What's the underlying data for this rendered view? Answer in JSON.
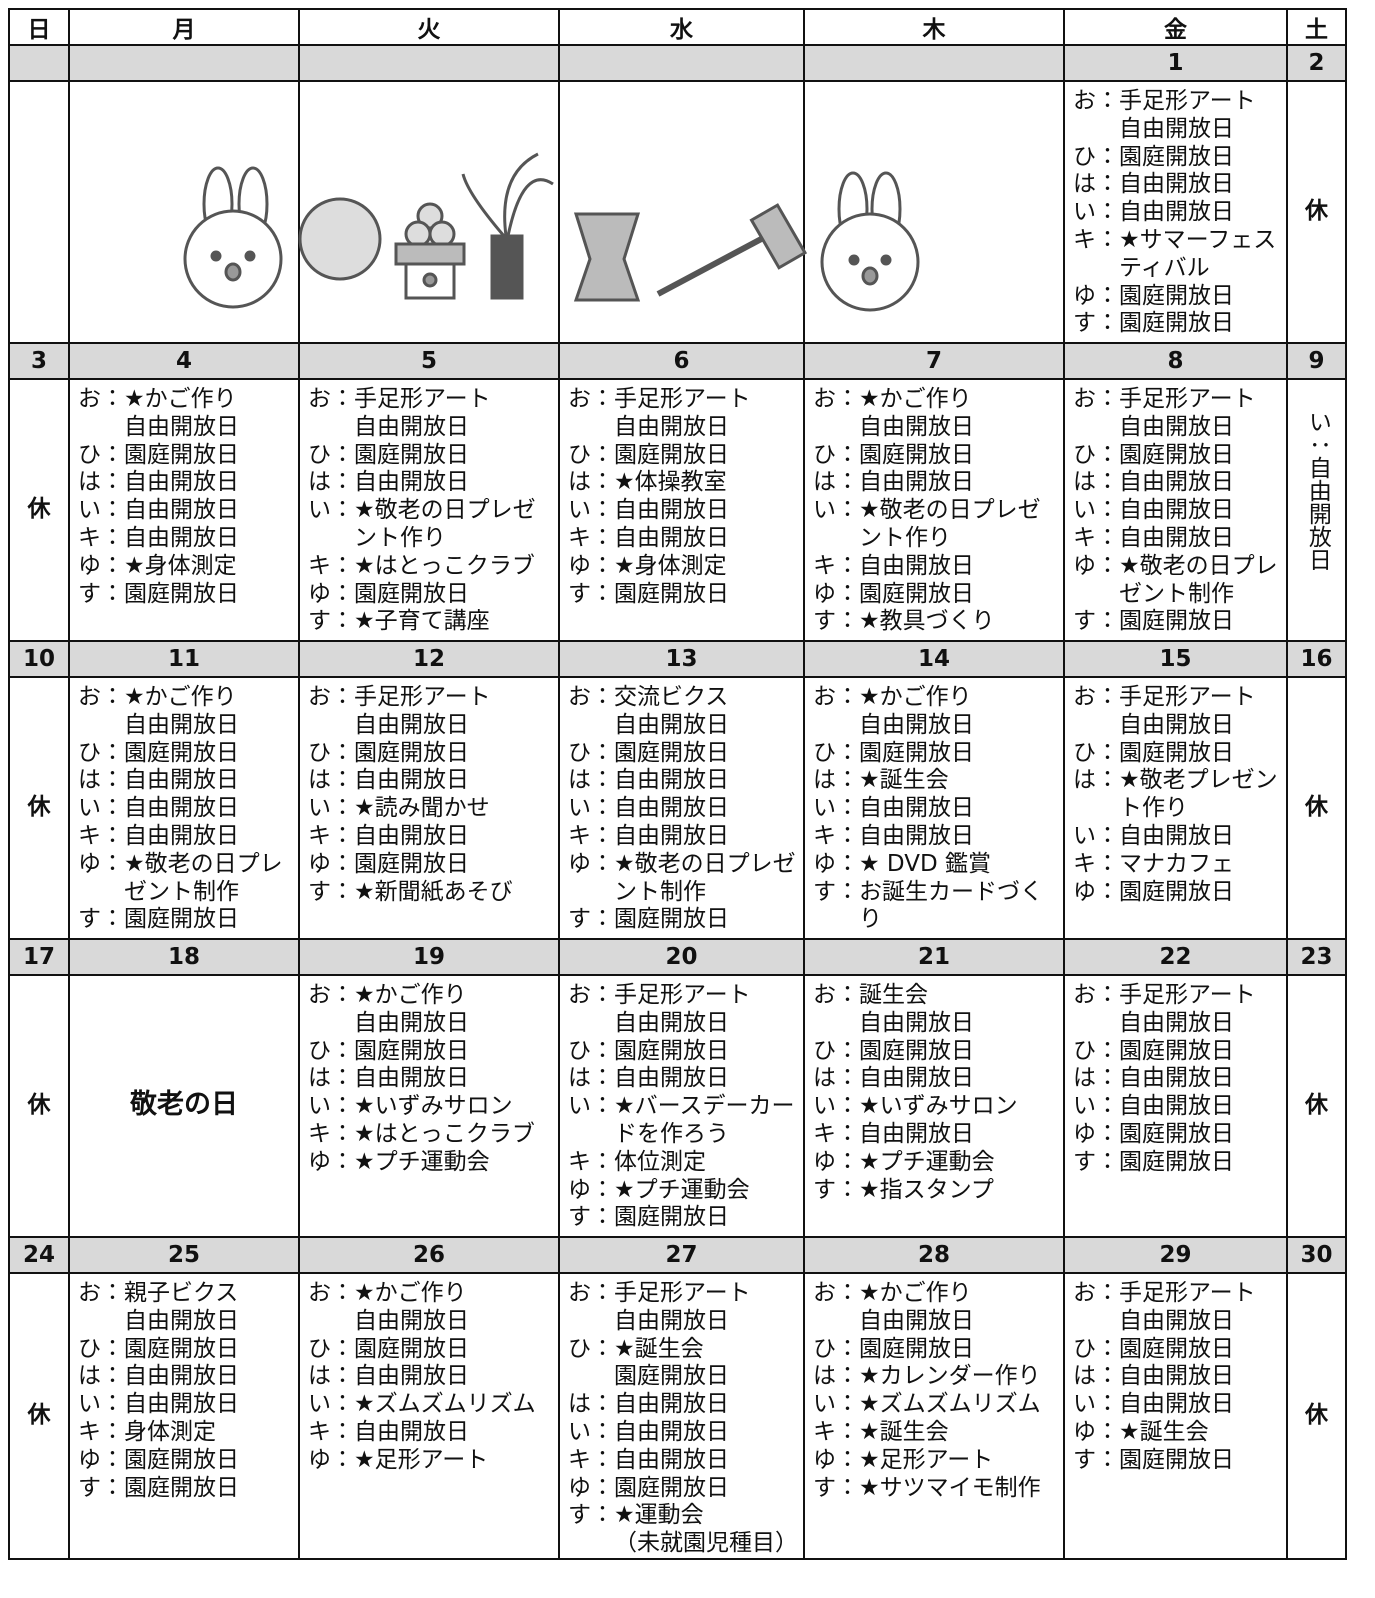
{
  "header": {
    "days": [
      "日",
      "月",
      "火",
      "水",
      "木",
      "金",
      "土"
    ]
  },
  "weeks": [
    {
      "days": [
        {},
        {},
        {},
        {},
        {},
        {
          "date": 1,
          "entries": [
            {
              "k": "お：",
              "t": [
                "手足形アート",
                "自由開放日"
              ]
            },
            {
              "k": "ひ：",
              "t": [
                "園庭開放日"
              ]
            },
            {
              "k": "は：",
              "t": [
                "自由開放日"
              ]
            },
            {
              "k": "い：",
              "t": [
                "自由開放日"
              ]
            },
            {
              "k": "キ：",
              "t": [
                "★サマーフェスティバル"
              ]
            },
            {
              "k": "ゆ：",
              "t": [
                "園庭開放日"
              ]
            },
            {
              "k": "す：",
              "t": [
                "園庭開放日"
              ]
            }
          ]
        },
        {
          "date": 2,
          "note": "休"
        }
      ]
    },
    {
      "days": [
        {
          "date": 3,
          "note": "休"
        },
        {
          "date": 4,
          "entries": [
            {
              "k": "お：",
              "t": [
                "★かご作り",
                "自由開放日"
              ]
            },
            {
              "k": "ひ：",
              "t": [
                "園庭開放日"
              ]
            },
            {
              "k": "は：",
              "t": [
                "自由開放日"
              ]
            },
            {
              "k": "い：",
              "t": [
                "自由開放日"
              ]
            },
            {
              "k": "キ：",
              "t": [
                "自由開放日"
              ]
            },
            {
              "k": "ゆ：",
              "t": [
                "★身体測定"
              ]
            },
            {
              "k": "す：",
              "t": [
                "園庭開放日"
              ]
            }
          ]
        },
        {
          "date": 5,
          "entries": [
            {
              "k": "お：",
              "t": [
                "手足形アート",
                "自由開放日"
              ]
            },
            {
              "k": "ひ：",
              "t": [
                "園庭開放日"
              ]
            },
            {
              "k": "は：",
              "t": [
                "自由開放日"
              ]
            },
            {
              "k": "い：",
              "t": [
                "★敬老の日プレゼント作り"
              ]
            },
            {
              "k": "キ：",
              "t": [
                "★はとっこクラブ"
              ]
            },
            {
              "k": "ゆ：",
              "t": [
                "園庭開放日"
              ]
            },
            {
              "k": "す：",
              "t": [
                "★子育て講座"
              ]
            }
          ]
        },
        {
          "date": 6,
          "entries": [
            {
              "k": "お：",
              "t": [
                "手足形アート",
                "自由開放日"
              ]
            },
            {
              "k": "ひ：",
              "t": [
                "園庭開放日"
              ]
            },
            {
              "k": "は：",
              "t": [
                "★体操教室"
              ]
            },
            {
              "k": "い：",
              "t": [
                "自由開放日"
              ]
            },
            {
              "k": "キ：",
              "t": [
                "自由開放日"
              ]
            },
            {
              "k": "ゆ：",
              "t": [
                "★身体測定"
              ]
            },
            {
              "k": "す：",
              "t": [
                "園庭開放日"
              ]
            }
          ]
        },
        {
          "date": 7,
          "entries": [
            {
              "k": "お：",
              "t": [
                "★かご作り",
                "自由開放日"
              ]
            },
            {
              "k": "ひ：",
              "t": [
                "園庭開放日"
              ]
            },
            {
              "k": "は：",
              "t": [
                "自由開放日"
              ]
            },
            {
              "k": "い：",
              "t": [
                "★敬老の日プレゼント作り"
              ]
            },
            {
              "k": "キ：",
              "t": [
                "自由開放日"
              ]
            },
            {
              "k": "ゆ：",
              "t": [
                "園庭開放日"
              ]
            },
            {
              "k": "す：",
              "t": [
                "★教具づくり"
              ]
            }
          ]
        },
        {
          "date": 8,
          "entries": [
            {
              "k": "お：",
              "t": [
                "手足形アート",
                "自由開放日"
              ]
            },
            {
              "k": "ひ：",
              "t": [
                "園庭開放日"
              ]
            },
            {
              "k": "は：",
              "t": [
                "自由開放日"
              ]
            },
            {
              "k": "い：",
              "t": [
                "自由開放日"
              ]
            },
            {
              "k": "キ：",
              "t": [
                "自由開放日"
              ]
            },
            {
              "k": "ゆ：",
              "t": [
                "★敬老の日プレゼント制作"
              ]
            },
            {
              "k": "す：",
              "t": [
                "園庭開放日"
              ]
            }
          ]
        },
        {
          "date": 9,
          "vertical": true,
          "entries": [
            {
              "k": "い：",
              "t": [
                "自由開放日"
              ]
            }
          ]
        }
      ]
    },
    {
      "days": [
        {
          "date": 10,
          "note": "休"
        },
        {
          "date": 11,
          "entries": [
            {
              "k": "お：",
              "t": [
                "★かご作り",
                "自由開放日"
              ]
            },
            {
              "k": "ひ：",
              "t": [
                "園庭開放日"
              ]
            },
            {
              "k": "は：",
              "t": [
                "自由開放日"
              ]
            },
            {
              "k": "い：",
              "t": [
                "自由開放日"
              ]
            },
            {
              "k": "キ：",
              "t": [
                "自由開放日"
              ]
            },
            {
              "k": "ゆ：",
              "t": [
                "★敬老の日プレゼント制作"
              ]
            },
            {
              "k": "す：",
              "t": [
                "園庭開放日"
              ]
            }
          ]
        },
        {
          "date": 12,
          "entries": [
            {
              "k": "お：",
              "t": [
                "手足形アート",
                "自由開放日"
              ]
            },
            {
              "k": "ひ：",
              "t": [
                "園庭開放日"
              ]
            },
            {
              "k": "は：",
              "t": [
                "自由開放日"
              ]
            },
            {
              "k": "い：",
              "t": [
                "★読み聞かせ"
              ]
            },
            {
              "k": "キ：",
              "t": [
                "自由開放日"
              ]
            },
            {
              "k": "ゆ：",
              "t": [
                "園庭開放日"
              ]
            },
            {
              "k": "す：",
              "t": [
                "★新聞紙あそび"
              ]
            }
          ]
        },
        {
          "date": 13,
          "entries": [
            {
              "k": "お：",
              "t": [
                "交流ビクス",
                "自由開放日"
              ]
            },
            {
              "k": "ひ：",
              "t": [
                "園庭開放日"
              ]
            },
            {
              "k": "は：",
              "t": [
                "自由開放日"
              ]
            },
            {
              "k": "い：",
              "t": [
                "自由開放日"
              ]
            },
            {
              "k": "キ：",
              "t": [
                "自由開放日"
              ]
            },
            {
              "k": "ゆ：",
              "t": [
                "★敬老の日プレゼント制作"
              ]
            },
            {
              "k": "す：",
              "t": [
                "園庭開放日"
              ]
            }
          ]
        },
        {
          "date": 14,
          "entries": [
            {
              "k": "お：",
              "t": [
                "★かご作り",
                "自由開放日"
              ]
            },
            {
              "k": "ひ：",
              "t": [
                "園庭開放日"
              ]
            },
            {
              "k": "は：",
              "t": [
                "★誕生会"
              ]
            },
            {
              "k": "い：",
              "t": [
                "自由開放日"
              ]
            },
            {
              "k": "キ：",
              "t": [
                "自由開放日"
              ]
            },
            {
              "k": "ゆ：",
              "t": [
                "★ DVD 鑑賞"
              ]
            },
            {
              "k": "す：",
              "t": [
                "お誕生カードづくり"
              ]
            }
          ]
        },
        {
          "date": 15,
          "entries": [
            {
              "k": "お：",
              "t": [
                "手足形アート",
                "自由開放日"
              ]
            },
            {
              "k": "ひ：",
              "t": [
                "園庭開放日"
              ]
            },
            {
              "k": "は：",
              "t": [
                "★敬老プレゼント作り"
              ]
            },
            {
              "k": "い：",
              "t": [
                "自由開放日"
              ]
            },
            {
              "k": "キ：",
              "t": [
                "マナカフェ"
              ]
            },
            {
              "k": "ゆ：",
              "t": [
                "園庭開放日"
              ]
            }
          ]
        },
        {
          "date": 16,
          "note": "休"
        }
      ]
    },
    {
      "days": [
        {
          "date": 17,
          "note": "休"
        },
        {
          "date": 18,
          "holiday": "敬老の日"
        },
        {
          "date": 19,
          "entries": [
            {
              "k": "お：",
              "t": [
                "★かご作り",
                "自由開放日"
              ]
            },
            {
              "k": "ひ：",
              "t": [
                "園庭開放日"
              ]
            },
            {
              "k": "は：",
              "t": [
                "自由開放日"
              ]
            },
            {
              "k": "い：",
              "t": [
                "★いずみサロン"
              ]
            },
            {
              "k": "キ：",
              "t": [
                "★はとっこクラブ"
              ]
            },
            {
              "k": "ゆ：",
              "t": [
                "★プチ運動会"
              ]
            }
          ]
        },
        {
          "date": 20,
          "entries": [
            {
              "k": "お：",
              "t": [
                "手足形アート",
                "自由開放日"
              ]
            },
            {
              "k": "ひ：",
              "t": [
                "園庭開放日"
              ]
            },
            {
              "k": "は：",
              "t": [
                "自由開放日"
              ]
            },
            {
              "k": "い：",
              "t": [
                "★バースデーカードを作ろう"
              ]
            },
            {
              "k": "キ：",
              "t": [
                "体位測定"
              ]
            },
            {
              "k": "ゆ：",
              "t": [
                "★プチ運動会"
              ]
            },
            {
              "k": "す：",
              "t": [
                "園庭開放日"
              ]
            }
          ]
        },
        {
          "date": 21,
          "entries": [
            {
              "k": "お：",
              "t": [
                "誕生会",
                "自由開放日"
              ]
            },
            {
              "k": "ひ：",
              "t": [
                "園庭開放日"
              ]
            },
            {
              "k": "は：",
              "t": [
                "自由開放日"
              ]
            },
            {
              "k": "い：",
              "t": [
                "★いずみサロン"
              ]
            },
            {
              "k": "キ：",
              "t": [
                "自由開放日"
              ]
            },
            {
              "k": "ゆ：",
              "t": [
                "★プチ運動会"
              ]
            },
            {
              "k": "す：",
              "t": [
                "★指スタンプ"
              ]
            }
          ]
        },
        {
          "date": 22,
          "entries": [
            {
              "k": "お：",
              "t": [
                "手足形アート",
                "自由開放日"
              ]
            },
            {
              "k": "ひ：",
              "t": [
                "園庭開放日"
              ]
            },
            {
              "k": "は：",
              "t": [
                "自由開放日"
              ]
            },
            {
              "k": "い：",
              "t": [
                "自由開放日"
              ]
            },
            {
              "k": "ゆ：",
              "t": [
                "園庭開放日"
              ]
            },
            {
              "k": "す：",
              "t": [
                "園庭開放日"
              ]
            }
          ]
        },
        {
          "date": 23,
          "note": "休"
        }
      ]
    },
    {
      "days": [
        {
          "date": 24,
          "note": "休"
        },
        {
          "date": 25,
          "entries": [
            {
              "k": "お：",
              "t": [
                "親子ビクス",
                "自由開放日"
              ]
            },
            {
              "k": "ひ：",
              "t": [
                "園庭開放日"
              ]
            },
            {
              "k": "は：",
              "t": [
                "自由開放日"
              ]
            },
            {
              "k": "い：",
              "t": [
                "自由開放日"
              ]
            },
            {
              "k": "キ：",
              "t": [
                "身体測定"
              ]
            },
            {
              "k": "ゆ：",
              "t": [
                "園庭開放日"
              ]
            },
            {
              "k": "す：",
              "t": [
                "園庭開放日"
              ]
            }
          ]
        },
        {
          "date": 26,
          "entries": [
            {
              "k": "お：",
              "t": [
                "★かご作り",
                "自由開放日"
              ]
            },
            {
              "k": "ひ：",
              "t": [
                "園庭開放日"
              ]
            },
            {
              "k": "は：",
              "t": [
                "自由開放日"
              ]
            },
            {
              "k": "い：",
              "t": [
                "★ズムズムリズム"
              ]
            },
            {
              "k": "キ：",
              "t": [
                "自由開放日"
              ]
            },
            {
              "k": "ゆ：",
              "t": [
                "★足形アート"
              ]
            }
          ]
        },
        {
          "date": 27,
          "entries": [
            {
              "k": "お：",
              "t": [
                "手足形アート",
                "自由開放日"
              ]
            },
            {
              "k": "ひ：",
              "t": [
                "★誕生会",
                "園庭開放日"
              ]
            },
            {
              "k": "は：",
              "t": [
                "自由開放日"
              ]
            },
            {
              "k": "い：",
              "t": [
                "自由開放日"
              ]
            },
            {
              "k": "キ：",
              "t": [
                "自由開放日"
              ]
            },
            {
              "k": "ゆ：",
              "t": [
                "園庭開放日"
              ]
            },
            {
              "k": "す：",
              "t": [
                "★運動会",
                "（未就園児種目）"
              ]
            }
          ]
        },
        {
          "date": 28,
          "entries": [
            {
              "k": "お：",
              "t": [
                "★かご作り",
                "自由開放日"
              ]
            },
            {
              "k": "ひ：",
              "t": [
                "園庭開放日"
              ]
            },
            {
              "k": "は：",
              "t": [
                "★カレンダー作り"
              ]
            },
            {
              "k": "い：",
              "t": [
                "★ズムズムリズム"
              ]
            },
            {
              "k": "キ：",
              "t": [
                "★誕生会"
              ]
            },
            {
              "k": "ゆ：",
              "t": [
                "★足形アート"
              ]
            },
            {
              "k": "す：",
              "t": [
                "★サツマイモ制作"
              ]
            }
          ]
        },
        {
          "date": 29,
          "entries": [
            {
              "k": "お：",
              "t": [
                "手足形アート",
                "自由開放日"
              ]
            },
            {
              "k": "ひ：",
              "t": [
                "園庭開放日"
              ]
            },
            {
              "k": "は：",
              "t": [
                "自由開放日"
              ]
            },
            {
              "k": "い：",
              "t": [
                "自由開放日"
              ]
            },
            {
              "k": "ゆ：",
              "t": [
                "★誕生会"
              ]
            },
            {
              "k": "す：",
              "t": [
                "園庭開放日"
              ]
            }
          ]
        },
        {
          "date": 30,
          "note": "休"
        }
      ]
    }
  ]
}
